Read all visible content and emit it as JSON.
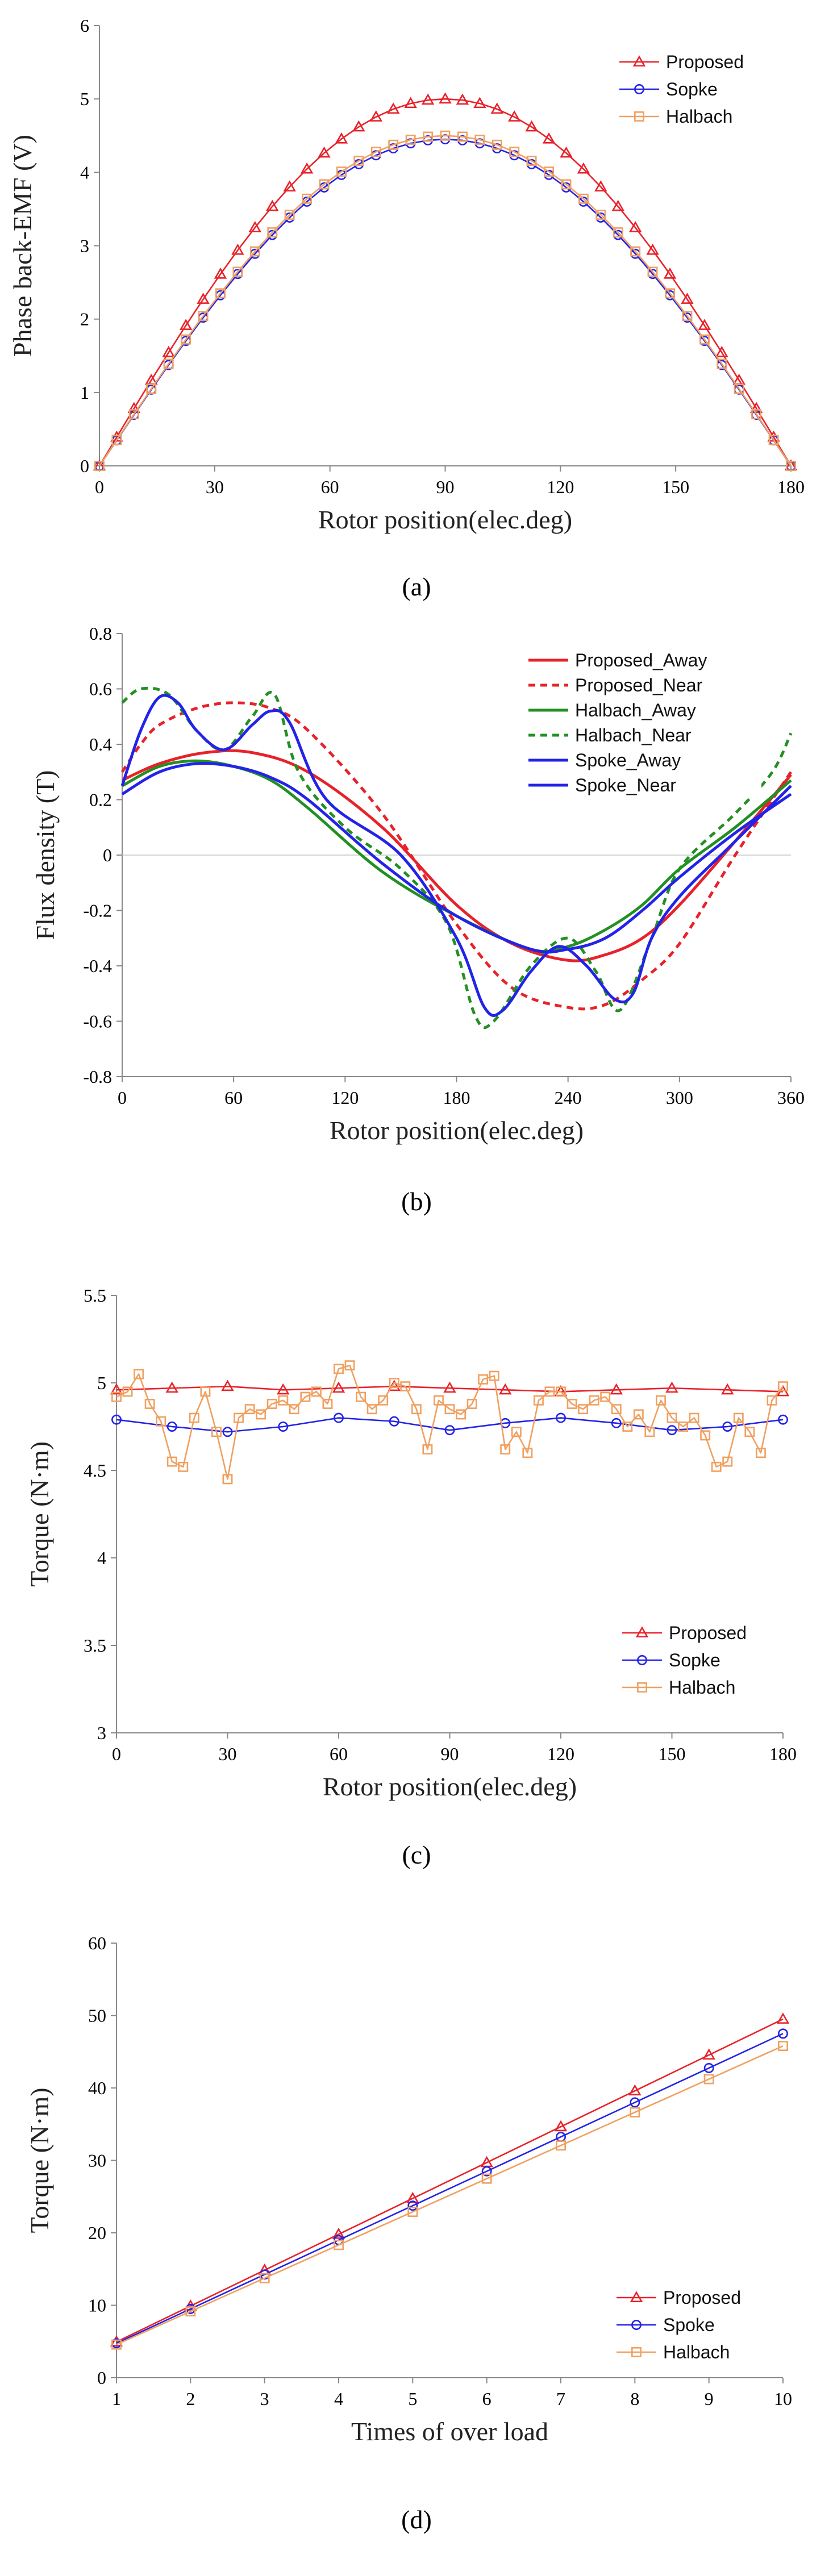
{
  "chart_data": [
    {
      "id": "a",
      "type": "line",
      "caption": "(a)",
      "xlabel": "Rotor position(elec.deg)",
      "ylabel": "Phase back-EMF (V)",
      "xlim": [
        0,
        180
      ],
      "ylim": [
        0,
        6
      ],
      "xticks": [
        0,
        30,
        60,
        90,
        120,
        150,
        180
      ],
      "yticks": [
        0,
        1,
        2,
        3,
        4,
        5,
        6
      ],
      "legend": [
        "Proposed",
        "Sopke",
        "Halbach"
      ],
      "series": [
        {
          "name": "Proposed",
          "color": "#e8222a",
          "marker": "triangle",
          "func": "sine",
          "amplitude": 5.0,
          "step": 4.5,
          "dash": ""
        },
        {
          "name": "Sopke",
          "color": "#2323e8",
          "marker": "circle",
          "func": "sine",
          "amplitude": 4.45,
          "step": 4.5,
          "dash": ""
        },
        {
          "name": "Halbach",
          "color": "#f0a060",
          "marker": "square",
          "func": "sine",
          "amplitude": 4.5,
          "step": 4.5,
          "dash": ""
        }
      ]
    },
    {
      "id": "b",
      "type": "line",
      "caption": "(b)",
      "xlabel": "Rotor position(elec.deg)",
      "ylabel": "Flux density (T)",
      "xlim": [
        0,
        360
      ],
      "ylim": [
        -0.8,
        0.8
      ],
      "xticks": [
        0,
        60,
        120,
        180,
        240,
        300,
        360
      ],
      "yticks": [
        -0.8,
        -0.6,
        -0.4,
        -0.2,
        0,
        0.2,
        0.4,
        0.6,
        0.8
      ],
      "legend": [
        "Proposed_Away",
        "Proposed_Near",
        "Halbach_Away",
        "Halbach_Near",
        "Spoke_Away",
        "Spoke_Near"
      ],
      "series": [
        {
          "name": "Proposed_Away",
          "color": "#e8222a",
          "dash": "",
          "marker": "none",
          "x": [
            0,
            20,
            45,
            70,
            100,
            140,
            180,
            210,
            240,
            260,
            280,
            300,
            330,
            360
          ],
          "y": [
            0.27,
            0.33,
            0.37,
            0.37,
            0.3,
            0.1,
            -0.18,
            -0.32,
            -0.38,
            -0.36,
            -0.3,
            -0.18,
            0.05,
            0.29
          ]
        },
        {
          "name": "Proposed_Near",
          "color": "#e8222a",
          "dash": "12,9",
          "marker": "none",
          "x": [
            0,
            10,
            20,
            40,
            60,
            80,
            100,
            140,
            180,
            210,
            240,
            260,
            280,
            300,
            330,
            360
          ],
          "y": [
            0.3,
            0.4,
            0.47,
            0.53,
            0.55,
            0.53,
            0.45,
            0.15,
            -0.25,
            -0.48,
            -0.55,
            -0.54,
            -0.45,
            -0.32,
            0.0,
            0.3
          ]
        },
        {
          "name": "Halbach_Away",
          "color": "#229022",
          "dash": "",
          "marker": "none",
          "x": [
            0,
            20,
            40,
            60,
            80,
            100,
            140,
            180,
            220,
            240,
            260,
            280,
            300,
            330,
            360
          ],
          "y": [
            0.25,
            0.32,
            0.34,
            0.32,
            0.27,
            0.17,
            -0.06,
            -0.22,
            -0.34,
            -0.33,
            -0.27,
            -0.18,
            -0.05,
            0.1,
            0.27
          ]
        },
        {
          "name": "Halbach_Near",
          "color": "#229022",
          "dash": "12,9",
          "marker": "none",
          "x": [
            0,
            10,
            25,
            40,
            55,
            70,
            82,
            95,
            120,
            150,
            175,
            190,
            200,
            220,
            240,
            255,
            268,
            285,
            300,
            330,
            350,
            360
          ],
          "y": [
            0.55,
            0.6,
            0.58,
            0.45,
            0.38,
            0.5,
            0.58,
            0.3,
            0.1,
            -0.05,
            -0.25,
            -0.58,
            -0.6,
            -0.4,
            -0.3,
            -0.42,
            -0.56,
            -0.3,
            -0.05,
            0.15,
            0.3,
            0.44
          ]
        },
        {
          "name": "Spoke_Away",
          "color": "#2323e8",
          "dash": "",
          "marker": "none",
          "x": [
            0,
            20,
            40,
            60,
            80,
            100,
            140,
            180,
            220,
            240,
            260,
            280,
            300,
            330,
            360
          ],
          "y": [
            0.22,
            0.3,
            0.33,
            0.32,
            0.28,
            0.2,
            -0.03,
            -0.22,
            -0.34,
            -0.34,
            -0.3,
            -0.2,
            -0.08,
            0.08,
            0.22
          ]
        },
        {
          "name": "Spoke_Near",
          "color": "#2323e8",
          "dash": "",
          "marker": "none",
          "x": [
            0,
            10,
            20,
            30,
            40,
            55,
            70,
            80,
            90,
            110,
            150,
            180,
            195,
            205,
            220,
            235,
            250,
            265,
            275,
            285,
            300,
            330,
            360
          ],
          "y": [
            0.25,
            0.45,
            0.57,
            0.55,
            0.45,
            0.38,
            0.47,
            0.52,
            0.48,
            0.2,
            0.0,
            -0.3,
            -0.55,
            -0.56,
            -0.42,
            -0.33,
            -0.4,
            -0.52,
            -0.5,
            -0.3,
            -0.15,
            0.05,
            0.25
          ]
        }
      ]
    },
    {
      "id": "c",
      "type": "line",
      "caption": "(c)",
      "xlabel": "Rotor position(elec.deg)",
      "ylabel": "Torque (N·m)",
      "xlim": [
        0,
        180
      ],
      "ylim": [
        3,
        5.5
      ],
      "xticks": [
        0,
        30,
        60,
        90,
        120,
        150,
        180
      ],
      "yticks": [
        3,
        3.5,
        4,
        4.5,
        5,
        5.5
      ],
      "legend": [
        "Proposed",
        "Sopke",
        "Halbach"
      ],
      "series": [
        {
          "name": "Proposed",
          "color": "#e8222a",
          "marker": "triangle",
          "dash": "",
          "x": [
            0,
            15,
            30,
            45,
            60,
            75,
            90,
            105,
            120,
            135,
            150,
            165,
            180
          ],
          "y": [
            4.96,
            4.97,
            4.98,
            4.96,
            4.97,
            4.98,
            4.97,
            4.96,
            4.95,
            4.96,
            4.97,
            4.96,
            4.95
          ]
        },
        {
          "name": "Sopke",
          "color": "#2323e8",
          "marker": "circle",
          "dash": "",
          "x": [
            0,
            15,
            30,
            45,
            60,
            75,
            90,
            105,
            120,
            135,
            150,
            165,
            180
          ],
          "y": [
            4.79,
            4.75,
            4.72,
            4.75,
            4.8,
            4.78,
            4.73,
            4.77,
            4.8,
            4.77,
            4.73,
            4.75,
            4.79
          ]
        },
        {
          "name": "Halbach",
          "color": "#f0a060",
          "marker": "square",
          "dash": "",
          "x": [
            0,
            3,
            6,
            9,
            12,
            15,
            18,
            21,
            24,
            27,
            30,
            33,
            36,
            39,
            42,
            45,
            48,
            51,
            54,
            57,
            60,
            63,
            66,
            69,
            72,
            75,
            78,
            81,
            84,
            87,
            90,
            93,
            96,
            99,
            102,
            105,
            108,
            111,
            114,
            117,
            120,
            123,
            126,
            129,
            132,
            135,
            138,
            141,
            144,
            147,
            150,
            153,
            156,
            159,
            162,
            165,
            168,
            171,
            174,
            177,
            180
          ],
          "y": [
            4.92,
            4.95,
            5.05,
            4.88,
            4.78,
            4.55,
            4.52,
            4.8,
            4.95,
            4.72,
            4.45,
            4.8,
            4.85,
            4.82,
            4.88,
            4.9,
            4.85,
            4.92,
            4.95,
            4.88,
            5.08,
            5.1,
            4.92,
            4.85,
            4.9,
            5.0,
            4.98,
            4.85,
            4.62,
            4.9,
            4.85,
            4.82,
            4.88,
            5.02,
            5.04,
            4.62,
            4.72,
            4.6,
            4.9,
            4.95,
            4.95,
            4.88,
            4.85,
            4.9,
            4.92,
            4.85,
            4.75,
            4.82,
            4.72,
            4.9,
            4.8,
            4.75,
            4.8,
            4.7,
            4.52,
            4.55,
            4.8,
            4.72,
            4.6,
            4.9,
            4.98
          ]
        }
      ]
    },
    {
      "id": "d",
      "type": "line",
      "caption": "(d)",
      "xlabel": "Times of over load",
      "ylabel": "Torque (N·m)",
      "xlim": [
        1,
        10
      ],
      "ylim": [
        0,
        60
      ],
      "xticks": [
        1,
        2,
        3,
        4,
        5,
        6,
        7,
        8,
        9,
        10
      ],
      "yticks": [
        0,
        10,
        20,
        30,
        40,
        50,
        60
      ],
      "legend": [
        "Proposed",
        "Spoke",
        "Halbach"
      ],
      "series": [
        {
          "name": "Proposed",
          "color": "#e8222a",
          "marker": "triangle",
          "dash": "",
          "x": [
            1,
            2,
            3,
            4,
            5,
            6,
            7,
            8,
            9,
            10
          ],
          "y": [
            4.95,
            9.9,
            14.85,
            19.8,
            24.75,
            29.7,
            34.65,
            39.6,
            44.55,
            49.5
          ]
        },
        {
          "name": "Spoke",
          "color": "#2323e8",
          "marker": "circle",
          "dash": "",
          "x": [
            1,
            2,
            3,
            4,
            5,
            6,
            7,
            8,
            9,
            10
          ],
          "y": [
            4.75,
            9.5,
            14.25,
            19.0,
            23.75,
            28.5,
            33.25,
            38.0,
            42.75,
            47.5
          ]
        },
        {
          "name": "Halbach",
          "color": "#f0a060",
          "marker": "square",
          "dash": "",
          "x": [
            1,
            2,
            3,
            4,
            5,
            6,
            7,
            8,
            9,
            10
          ],
          "y": [
            4.58,
            9.16,
            13.74,
            18.32,
            22.9,
            27.48,
            32.06,
            36.64,
            41.22,
            45.8
          ]
        }
      ]
    }
  ]
}
